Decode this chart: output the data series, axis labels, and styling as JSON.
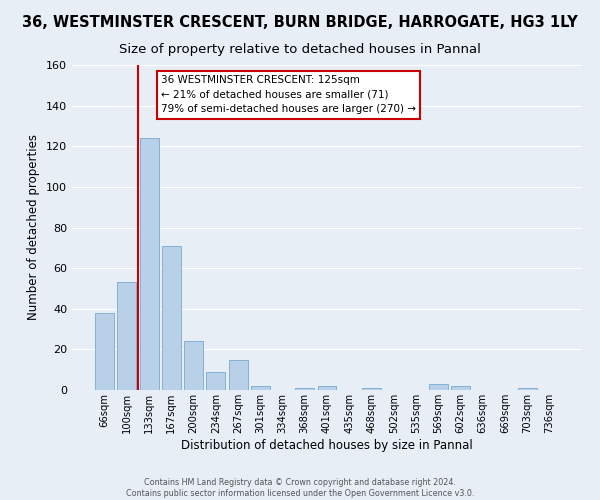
{
  "title": "36, WESTMINSTER CRESCENT, BURN BRIDGE, HARROGATE, HG3 1LY",
  "subtitle": "Size of property relative to detached houses in Pannal",
  "xlabel": "Distribution of detached houses by size in Pannal",
  "ylabel": "Number of detached properties",
  "bar_labels": [
    "66sqm",
    "100sqm",
    "133sqm",
    "167sqm",
    "200sqm",
    "234sqm",
    "267sqm",
    "301sqm",
    "334sqm",
    "368sqm",
    "401sqm",
    "435sqm",
    "468sqm",
    "502sqm",
    "535sqm",
    "569sqm",
    "602sqm",
    "636sqm",
    "669sqm",
    "703sqm",
    "736sqm"
  ],
  "bar_values": [
    38,
    53,
    124,
    71,
    24,
    9,
    15,
    2,
    0,
    1,
    2,
    0,
    1,
    0,
    0,
    3,
    2,
    0,
    0,
    1,
    0
  ],
  "bar_fill_color": "#b8d0e8",
  "bar_edge_color": "#7aaacf",
  "marker_color": "#cc0000",
  "ylim": [
    0,
    160
  ],
  "yticks": [
    0,
    20,
    40,
    60,
    80,
    100,
    120,
    140,
    160
  ],
  "annotation_lines": [
    "36 WESTMINSTER CRESCENT: 125sqm",
    "← 21% of detached houses are smaller (71)",
    "79% of semi-detached houses are larger (270) →"
  ],
  "footer_line1": "Contains HM Land Registry data © Crown copyright and database right 2024.",
  "footer_line2": "Contains public sector information licensed under the Open Government Licence v3.0.",
  "background_color": "#e8eef6",
  "plot_bg_color": "#e8eef6",
  "grid_color": "#ffffff",
  "title_fontsize": 10.5,
  "subtitle_fontsize": 9.5,
  "ylabel_text": "Number of detached properties"
}
